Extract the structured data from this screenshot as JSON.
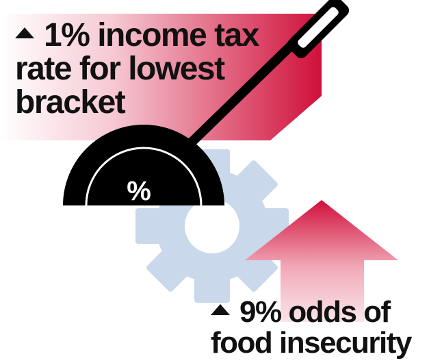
{
  "top_label": {
    "line1": "1% income tax",
    "line2": "rate for lowest",
    "line3": "bracket"
  },
  "bottom_label": {
    "line1": "9% odds of",
    "line2": "food insecurity"
  },
  "gauge": {
    "symbol": "%"
  },
  "icons": [
    "up-triangle-icon",
    "lever-icon",
    "gear-icon",
    "up-arrow-icon"
  ],
  "colors": {
    "accent": "#d0103a",
    "gear": "#c9d8ea",
    "text": "#111111",
    "lever": "#000000"
  }
}
